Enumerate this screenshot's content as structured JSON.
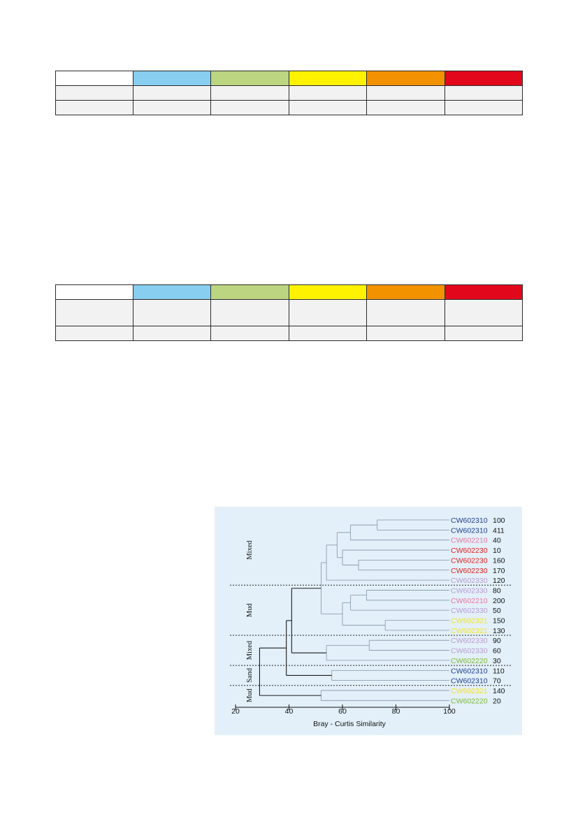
{
  "tables": [
    {
      "header_colors": [
        "#ffffff",
        "#87cef0",
        "#bcd580",
        "#fff200",
        "#f39200",
        "#e3071b"
      ],
      "rows": [
        [
          "",
          "",
          "",
          "",
          "",
          ""
        ],
        [
          "",
          "",
          "",
          "",
          "",
          ""
        ]
      ]
    },
    {
      "header_colors": [
        "#ffffff",
        "#87cef0",
        "#bcd580",
        "#fff200",
        "#f39200",
        "#e3071b"
      ],
      "rows": [
        [
          "",
          "",
          "",
          "",
          "",
          ""
        ],
        [
          "",
          "",
          "",
          "",
          "",
          ""
        ]
      ]
    }
  ],
  "dendrogram": {
    "background": "#e3f0f9",
    "xlabel": "Bray - Curtis Similarity",
    "ticks": [
      20,
      40,
      60,
      80,
      100
    ],
    "xlim": [
      20,
      100
    ],
    "groups": [
      {
        "label": "Mixed",
        "leaf_start": 0,
        "leaf_end": 6
      },
      {
        "label": "Mud",
        "leaf_start": 7,
        "leaf_end": 11
      },
      {
        "label": "Mixed",
        "leaf_start": 12,
        "leaf_end": 14
      },
      {
        "label": "Sand",
        "leaf_start": 15,
        "leaf_end": 16
      },
      {
        "label": "Mud",
        "leaf_start": 17,
        "leaf_end": 18
      }
    ],
    "leaves": [
      {
        "code": "CW602310",
        "num": "100",
        "color": "#1f3d8c"
      },
      {
        "code": "CW602310",
        "num": "411",
        "color": "#1f3d8c"
      },
      {
        "code": "CW602210",
        "num": "40",
        "color": "#e8749d"
      },
      {
        "code": "CW602230",
        "num": "10",
        "color": "#e31d1d"
      },
      {
        "code": "CW602230",
        "num": "160",
        "color": "#e31d1d"
      },
      {
        "code": "CW602230",
        "num": "170",
        "color": "#e31d1d"
      },
      {
        "code": "CW602330",
        "num": "120",
        "color": "#b79ad0"
      },
      {
        "code": "CW602330",
        "num": "80",
        "color": "#b79ad0"
      },
      {
        "code": "CW602210",
        "num": "200",
        "color": "#e8749d"
      },
      {
        "code": "CW602330",
        "num": "50",
        "color": "#b79ad0"
      },
      {
        "code": "CW602321",
        "num": "150",
        "color": "#f2e22a"
      },
      {
        "code": "CW602321",
        "num": "130",
        "color": "#f2e22a"
      },
      {
        "code": "CW602330",
        "num": "90",
        "color": "#b79ad0"
      },
      {
        "code": "CW602330",
        "num": "60",
        "color": "#b79ad0"
      },
      {
        "code": "CW602220",
        "num": "30",
        "color": "#7cb82f"
      },
      {
        "code": "CW602310",
        "num": "110",
        "color": "#1f3d8c"
      },
      {
        "code": "CW602310",
        "num": "70",
        "color": "#1f3d8c"
      },
      {
        "code": "CW602321",
        "num": "140",
        "color": "#f2e22a"
      },
      {
        "code": "CW602220",
        "num": "20",
        "color": "#7cb82f"
      }
    ],
    "merges": [
      {
        "a": "L0",
        "b": "L1",
        "sim": 73
      },
      {
        "a": "M0",
        "b": "L2",
        "sim": 63
      },
      {
        "a": "L4",
        "b": "L5",
        "sim": 66
      },
      {
        "a": "L3",
        "b": "M2",
        "sim": 60
      },
      {
        "a": "M1",
        "b": "M3",
        "sim": 58
      },
      {
        "a": "M4",
        "b": "L6",
        "sim": 54
      },
      {
        "a": "L7",
        "b": "L8",
        "sim": 69
      },
      {
        "a": "M6",
        "b": "L9",
        "sim": 63
      },
      {
        "a": "L10",
        "b": "L11",
        "sim": 76
      },
      {
        "a": "M7",
        "b": "M8",
        "sim": 60
      },
      {
        "a": "M5",
        "b": "M9",
        "sim": 52
      },
      {
        "a": "L12",
        "b": "L13",
        "sim": 70
      },
      {
        "a": "M11",
        "b": "L14",
        "sim": 54
      },
      {
        "a": "M10",
        "b": "M12",
        "sim": 41
      },
      {
        "a": "L15",
        "b": "L16",
        "sim": 56
      },
      {
        "a": "M13",
        "b": "M14",
        "sim": 39
      },
      {
        "a": "L17",
        "b": "L18",
        "sim": 52
      },
      {
        "a": "M15",
        "b": "M16",
        "sim": 29
      }
    ]
  }
}
